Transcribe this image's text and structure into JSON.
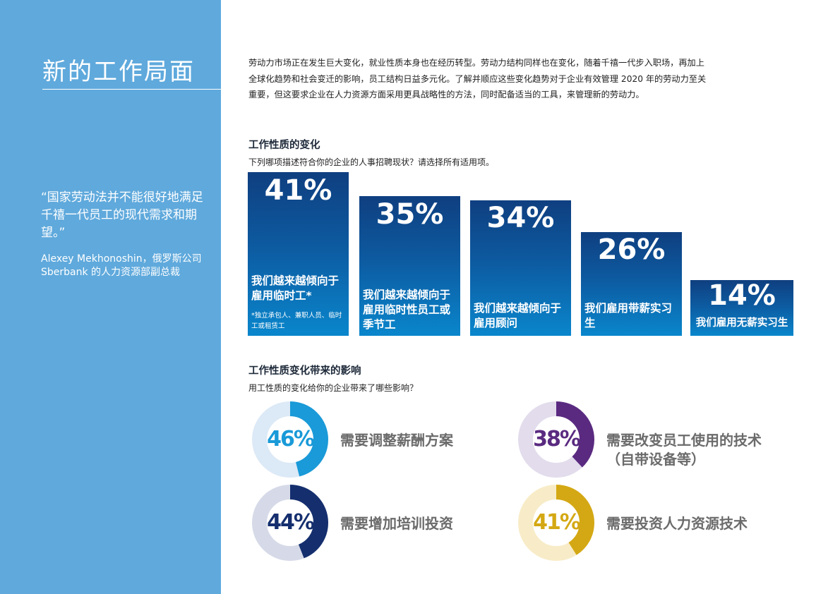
{
  "sidebar": {
    "title": "新的工作局面",
    "quote": "“国家劳动法并不能很好地满足千禧一代员工的现代需求和期望。”",
    "attribution": "Alexey Mekhonoshin，俄罗斯公司 Sberbank 的人力资源部副总裁"
  },
  "intro": "劳动力市场正在发生巨大变化，就业性质本身也在经历转型。劳动力结构同样也在变化，随着千禧一代步入职场，再加上全球化趋势和社会变迁的影响，员工结构日益多元化。了解并顺应这些变化趋势对于企业有效管理 2020 年的劳动力至关重要，但这要求企业在人力资源方面采用更具战略性的方法，同时配备适当的工具，来管理新的劳动力。",
  "section1": {
    "title": "工作性质的变化",
    "question": "下列哪项描述符合你的企业的人事招聘现状？请选择所有适用项。"
  },
  "section2": {
    "title": "工作性质变化带来的影响",
    "question": "用工性质的变化给你的企业带来了哪些影响？"
  },
  "chart_data": [
    {
      "type": "bar",
      "categories": [
        "我们越来越倾向于雇用临时工*",
        "我们越来越倾向于雇用临时性员工或季节工",
        "我们越来越倾向于雇用顾问",
        "我们雇用带薪实习生",
        "我们雇用无薪实习生"
      ],
      "values": [
        41,
        35,
        34,
        26,
        14
      ],
      "value_labels": [
        "41%",
        "35%",
        "34%",
        "26%",
        "14%"
      ],
      "footnote": "*独立承包人、兼职人员、临时工或租赁工",
      "ylim": [
        0,
        41
      ],
      "colors": [
        "#0f3f80",
        "#0a86cc"
      ]
    },
    {
      "type": "pie",
      "items": [
        {
          "label": "需要调整薪酬方案",
          "value": 46,
          "display": "46%",
          "color": "#1a9ad8",
          "track": "#dce9f6"
        },
        {
          "label": "需要改变员工使用的技术（自带设备等）",
          "value": 38,
          "display": "38%",
          "color": "#5a2a80",
          "track": "#e2dcec"
        },
        {
          "label": "需要增加培训投资",
          "value": 44,
          "display": "44%",
          "color": "#152f6e",
          "track": "#d6dae8"
        },
        {
          "label": "需要投资人力资源技术",
          "value": 41,
          "display": "41%",
          "color": "#d4a814",
          "track": "#f8ecc8"
        }
      ]
    }
  ]
}
